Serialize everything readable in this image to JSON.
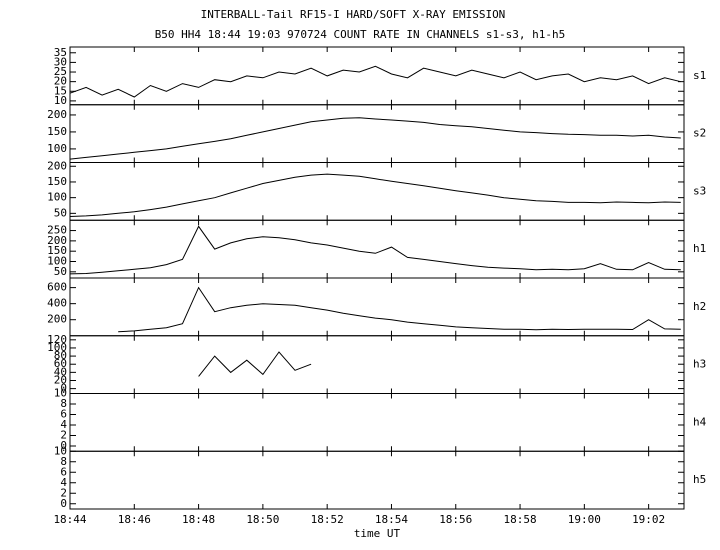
{
  "chart_data": {
    "type": "line",
    "title": "INTERBALL-Tail RF15-I HARD/SOFT X-RAY EMISSION",
    "subtitle": "B50 HH4 18:44 19:03 970724  COUNT RATE IN CHANNELS s1-s3, h1-h5",
    "xlabel": "time UT",
    "color": "#000000",
    "xlim": [
      1124,
      1143.1
    ],
    "xticks": [
      {
        "value": 1124,
        "label": "18:44"
      },
      {
        "value": 1126,
        "label": "18:46"
      },
      {
        "value": 1128,
        "label": "18:48"
      },
      {
        "value": 1130,
        "label": "18:50"
      },
      {
        "value": 1132,
        "label": "18:52"
      },
      {
        "value": 1134,
        "label": "18:54"
      },
      {
        "value": 1136,
        "label": "18:56"
      },
      {
        "value": 1138,
        "label": "18:58"
      },
      {
        "value": 1140,
        "label": "19:00"
      },
      {
        "value": 1142,
        "label": "19:02"
      }
    ],
    "x": [
      1124,
      1124.5,
      1125,
      1125.5,
      1126,
      1126.5,
      1127,
      1127.5,
      1128,
      1128.5,
      1129,
      1129.5,
      1130,
      1130.5,
      1131,
      1131.5,
      1132,
      1132.5,
      1133,
      1133.5,
      1134,
      1134.5,
      1135,
      1135.5,
      1136,
      1136.5,
      1137,
      1137.5,
      1138,
      1138.5,
      1139,
      1139.5,
      1140,
      1140.5,
      1141,
      1141.5,
      1142,
      1142.5,
      1143
    ],
    "panels": [
      {
        "name": "s1",
        "ylim": [
          8,
          38
        ],
        "yticks": [
          10,
          15,
          20,
          25,
          30,
          35
        ],
        "values": [
          14,
          17,
          13,
          16,
          12,
          18,
          15,
          19,
          17,
          21,
          20,
          23,
          22,
          25,
          24,
          27,
          23,
          26,
          25,
          28,
          24,
          22,
          27,
          25,
          23,
          26,
          24,
          22,
          25,
          21,
          23,
          24,
          20,
          22,
          21,
          23,
          19,
          22,
          20
        ]
      },
      {
        "name": "s2",
        "ylim": [
          60,
          230
        ],
        "yticks": [
          100,
          150,
          200
        ],
        "values": [
          70,
          75,
          80,
          85,
          90,
          95,
          100,
          108,
          115,
          122,
          130,
          140,
          150,
          160,
          170,
          180,
          185,
          190,
          192,
          188,
          185,
          182,
          178,
          172,
          168,
          165,
          160,
          155,
          150,
          148,
          145,
          143,
          142,
          140,
          140,
          138,
          140,
          135,
          132
        ]
      },
      {
        "name": "s3",
        "ylim": [
          28,
          212
        ],
        "yticks": [
          50,
          100,
          150,
          200
        ],
        "values": [
          40,
          42,
          45,
          50,
          55,
          62,
          70,
          80,
          90,
          100,
          115,
          130,
          145,
          155,
          165,
          172,
          175,
          172,
          168,
          160,
          152,
          145,
          138,
          130,
          122,
          115,
          108,
          100,
          95,
          90,
          88,
          85,
          85,
          84,
          86,
          85,
          84,
          86,
          85
        ]
      },
      {
        "name": "h1",
        "ylim": [
          20,
          300
        ],
        "yticks": [
          50,
          100,
          150,
          200,
          250
        ],
        "values": [
          40,
          42,
          48,
          55,
          62,
          70,
          85,
          110,
          270,
          160,
          190,
          210,
          220,
          215,
          205,
          190,
          180,
          165,
          150,
          140,
          170,
          120,
          110,
          100,
          90,
          80,
          72,
          68,
          65,
          60,
          62,
          60,
          65,
          90,
          62,
          60,
          95,
          62,
          60
        ]
      },
      {
        "name": "h2",
        "ylim": [
          0,
          720
        ],
        "yticks": [
          200,
          400,
          600
        ],
        "values": [
          null,
          null,
          null,
          50,
          60,
          80,
          100,
          150,
          600,
          300,
          350,
          380,
          400,
          390,
          380,
          350,
          320,
          280,
          250,
          220,
          200,
          170,
          150,
          130,
          110,
          100,
          90,
          80,
          80,
          75,
          80,
          78,
          80,
          82,
          80,
          78,
          200,
          85,
          80
        ]
      },
      {
        "name": "h3",
        "ylim": [
          -12,
          130
        ],
        "yticks": [
          0,
          20,
          40,
          60,
          80,
          100,
          120
        ],
        "values": [
          null,
          null,
          null,
          null,
          null,
          null,
          null,
          null,
          30,
          80,
          40,
          70,
          35,
          90,
          45,
          60,
          null,
          null,
          null,
          null,
          null,
          null,
          null,
          null,
          null,
          null,
          null,
          null,
          null,
          null,
          null,
          null,
          null,
          null,
          null,
          null,
          null,
          null,
          null
        ]
      },
      {
        "name": "h4",
        "ylim": [
          -1,
          10
        ],
        "yticks": [
          0,
          2,
          4,
          6,
          8,
          10
        ]
      },
      {
        "name": "h5",
        "ylim": [
          -1,
          10
        ],
        "yticks": [
          0,
          2,
          4,
          6,
          8,
          10
        ]
      }
    ]
  }
}
